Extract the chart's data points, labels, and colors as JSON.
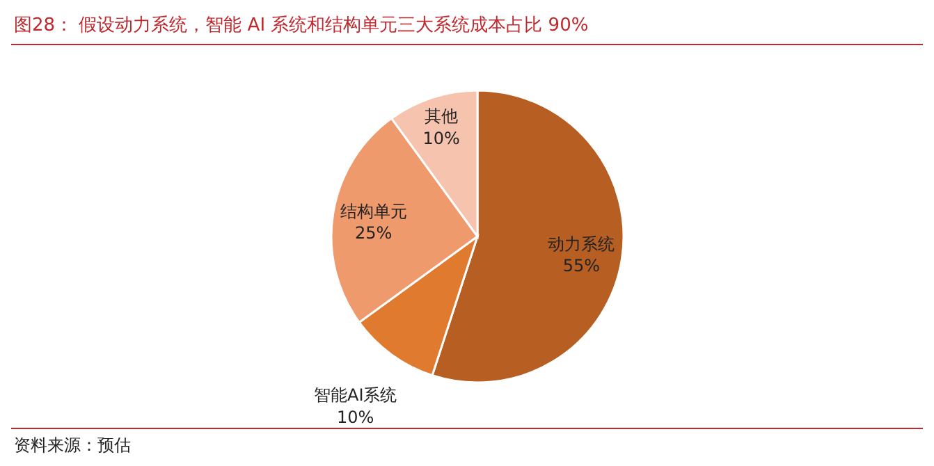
{
  "chart_data": {
    "type": "pie",
    "title": "图28：  假设动力系统，智能 AI 系统和结构单元三大系统成本占比 90%",
    "categories": [
      "动力系统",
      "智能AI系统",
      "结构单元",
      "其他"
    ],
    "values": [
      55,
      10,
      25,
      10
    ],
    "colors": [
      "#b75e22",
      "#e07a2e",
      "#ef9a6c",
      "#f5c3ae"
    ],
    "value_labels": [
      "55%",
      "10%",
      "25%",
      "10%"
    ],
    "annotations": [
      "资料来源：预估"
    ]
  }
}
